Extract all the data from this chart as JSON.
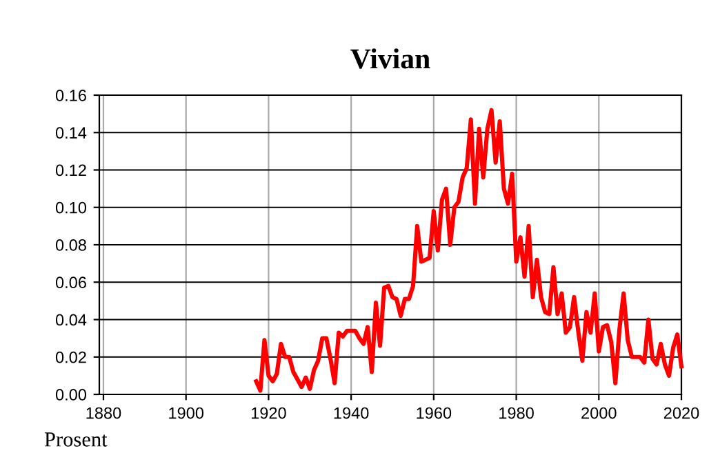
{
  "chart_data": {
    "type": "line",
    "title": "Vivian",
    "ylabel": "Prosent",
    "x": [
      1917,
      1918,
      1919,
      1920,
      1921,
      1922,
      1923,
      1924,
      1925,
      1926,
      1927,
      1928,
      1929,
      1930,
      1931,
      1932,
      1933,
      1934,
      1935,
      1936,
      1937,
      1938,
      1939,
      1940,
      1941,
      1942,
      1943,
      1944,
      1945,
      1946,
      1947,
      1948,
      1949,
      1950,
      1951,
      1952,
      1953,
      1954,
      1955,
      1956,
      1957,
      1958,
      1959,
      1960,
      1961,
      1962,
      1963,
      1964,
      1965,
      1966,
      1967,
      1968,
      1969,
      1970,
      1971,
      1972,
      1973,
      1974,
      1975,
      1976,
      1977,
      1978,
      1979,
      1980,
      1981,
      1982,
      1983,
      1984,
      1985,
      1986,
      1987,
      1988,
      1989,
      1990,
      1991,
      1992,
      1993,
      1994,
      1995,
      1996,
      1997,
      1998,
      1999,
      2000,
      2001,
      2002,
      2003,
      2004,
      2005,
      2006,
      2007,
      2008,
      2009,
      2010,
      2011,
      2012,
      2013,
      2014,
      2015,
      2016,
      2017,
      2018,
      2019,
      2020
    ],
    "series": [
      {
        "color": "#ff0000",
        "values": [
          0.007,
          0.002,
          0.029,
          0.01,
          0.007,
          0.011,
          0.027,
          0.02,
          0.02,
          0.012,
          0.008,
          0.004,
          0.009,
          0.003,
          0.013,
          0.018,
          0.03,
          0.03,
          0.019,
          0.006,
          0.033,
          0.031,
          0.034,
          0.034,
          0.034,
          0.03,
          0.027,
          0.036,
          0.012,
          0.049,
          0.026,
          0.057,
          0.058,
          0.052,
          0.051,
          0.042,
          0.051,
          0.051,
          0.058,
          0.09,
          0.071,
          0.072,
          0.073,
          0.098,
          0.077,
          0.104,
          0.11,
          0.08,
          0.1,
          0.103,
          0.116,
          0.121,
          0.147,
          0.102,
          0.142,
          0.116,
          0.142,
          0.152,
          0.124,
          0.146,
          0.11,
          0.102,
          0.118,
          0.071,
          0.084,
          0.063,
          0.09,
          0.052,
          0.072,
          0.052,
          0.044,
          0.043,
          0.068,
          0.043,
          0.054,
          0.033,
          0.036,
          0.052,
          0.034,
          0.018,
          0.044,
          0.033,
          0.054,
          0.023,
          0.036,
          0.037,
          0.028,
          0.006,
          0.035,
          0.054,
          0.029,
          0.02,
          0.02,
          0.02,
          0.017,
          0.04,
          0.019,
          0.016,
          0.027,
          0.016,
          0.01,
          0.025,
          0.032,
          0.015
        ]
      }
    ],
    "xlim": [
      1879,
      2020
    ],
    "xticks": [
      1880,
      1900,
      1920,
      1940,
      1960,
      1980,
      2000,
      2020
    ],
    "ylim": [
      0,
      0.16
    ],
    "yticks": [
      {
        "value": 0,
        "label": "0.00"
      },
      {
        "value": 0.02,
        "label": "0.02"
      },
      {
        "value": 0.04,
        "label": "0.04"
      },
      {
        "value": 0.06,
        "label": "0.06"
      },
      {
        "value": 0.08,
        "label": "0.08"
      },
      {
        "value": 0.1,
        "label": "0.10"
      },
      {
        "value": 0.12,
        "label": "0.12"
      },
      {
        "value": 0.14,
        "label": "0.14"
      },
      {
        "value": 0.16,
        "label": "0.16"
      }
    ],
    "grid": true,
    "line_style": "solid",
    "marker": "none"
  }
}
